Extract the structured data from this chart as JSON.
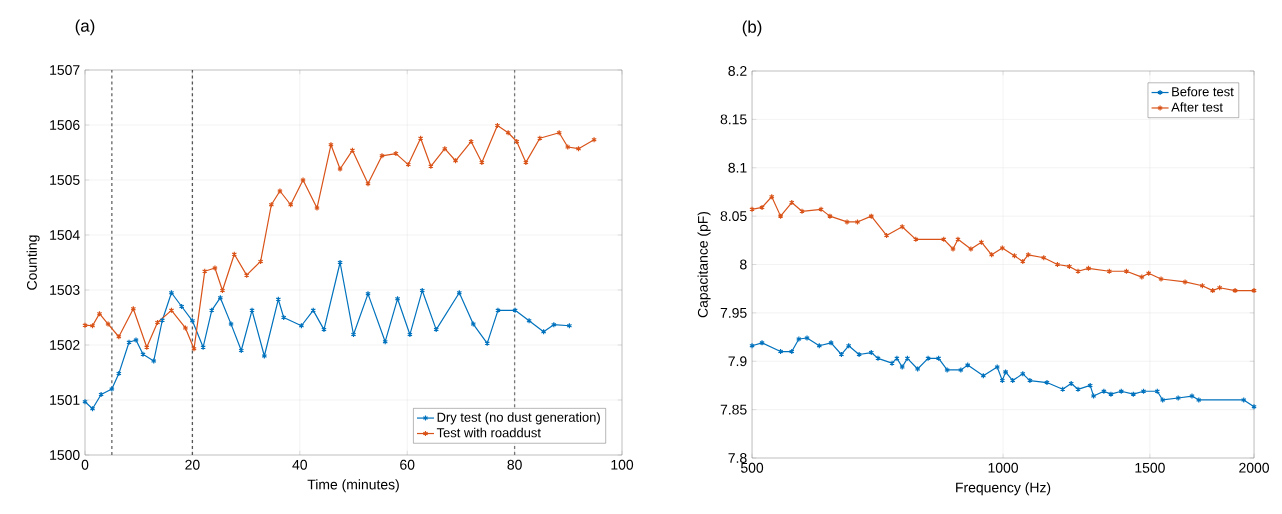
{
  "chart_data": [
    {
      "type": "line",
      "title": "(a)",
      "xlabel": "Time (minutes)",
      "ylabel": "Counting",
      "xlim": [
        0,
        100
      ],
      "ylim": [
        1500,
        1507
      ],
      "xticks": [
        0,
        20,
        40,
        60,
        80,
        100
      ],
      "yticks": [
        1500,
        1501,
        1502,
        1503,
        1504,
        1505,
        1506,
        1507
      ],
      "grid": true,
      "legend": "bottom right",
      "marker": "cross",
      "ref_lines": [
        {
          "axis": "x",
          "value": 5,
          "color": "#666666",
          "line_style": "dashed"
        },
        {
          "axis": "x",
          "value": 20,
          "color": "#555555",
          "line_style": "dashed"
        },
        {
          "axis": "x",
          "value": 80,
          "color": "#777777",
          "line_style": "dashed"
        }
      ],
      "series": [
        {
          "name": "Dry test (no dust generation)",
          "color": "#0072bd",
          "x": [
            0,
            1.4,
            3,
            5,
            6.3,
            8.2,
            9.5,
            10.8,
            12.8,
            14.4,
            16.1,
            18,
            20,
            22,
            23.6,
            25.2,
            27.2,
            29.1,
            31.1,
            33.4,
            36,
            37,
            40.3,
            42.5,
            44.5,
            47.5,
            50,
            52.7,
            55.9,
            58.2,
            60.5,
            62.8,
            65.4,
            69.7,
            72.3,
            74.9,
            76.9,
            80.1,
            82.7,
            85.4,
            87.3,
            90.2
          ],
          "values": [
            1500.97,
            1500.84,
            1501.1,
            1501.2,
            1501.48,
            1502.05,
            1502.09,
            1501.83,
            1501.71,
            1502.45,
            1502.95,
            1502.7,
            1502.44,
            1501.96,
            1502.63,
            1502.86,
            1502.38,
            1501.9,
            1502.63,
            1501.8,
            1502.83,
            1502.5,
            1502.35,
            1502.63,
            1502.28,
            1503.5,
            1502.19,
            1502.93,
            1502.06,
            1502.84,
            1502.19,
            1502.99,
            1502.28,
            1502.95,
            1502.38,
            1502.03,
            1502.63,
            1502.63,
            1502.44,
            1502.24,
            1502.37,
            1502.35
          ]
        },
        {
          "name": "Test with roaddust",
          "color": "#d95319",
          "x": [
            0,
            1.4,
            2.7,
            4.3,
            6.3,
            9,
            11.5,
            13.5,
            16.1,
            18.7,
            20.3,
            22.3,
            24.2,
            25.6,
            27.8,
            30.1,
            32.7,
            34.7,
            36.3,
            38.3,
            40.6,
            43.2,
            45.8,
            47.5,
            49.8,
            52.7,
            55.3,
            57.9,
            60.2,
            62.5,
            64.4,
            67,
            69,
            71.9,
            73.9,
            76.8,
            78.8,
            80.4,
            82.1,
            84.7,
            88.3,
            89.9,
            91.9,
            94.8
          ],
          "values": [
            1502.36,
            1502.35,
            1502.57,
            1502.38,
            1502.15,
            1502.66,
            1501.96,
            1502.41,
            1502.63,
            1502.31,
            1501.93,
            1503.34,
            1503.4,
            1502.99,
            1503.65,
            1503.27,
            1503.52,
            1504.55,
            1504.8,
            1504.55,
            1505.0,
            1504.49,
            1505.64,
            1505.2,
            1505.54,
            1504.93,
            1505.44,
            1505.48,
            1505.28,
            1505.76,
            1505.25,
            1505.57,
            1505.35,
            1505.7,
            1505.32,
            1505.99,
            1505.86,
            1505.7,
            1505.32,
            1505.76,
            1505.86,
            1505.6,
            1505.57,
            1505.73
          ]
        }
      ]
    },
    {
      "type": "line",
      "title": "(b)",
      "xlabel": "Frequency (Hz)",
      "ylabel": "Capacitance (pF)",
      "xlim": [
        500,
        2000
      ],
      "ylim": [
        7.8,
        8.2
      ],
      "xticks": [
        500,
        1000,
        1500,
        2000
      ],
      "yticks": [
        7.8,
        7.85,
        7.9,
        7.95,
        8,
        8.05,
        8.1,
        8.15,
        8.2
      ],
      "log": "x",
      "grid": true,
      "legend": "top right",
      "marker": "cross",
      "series": [
        {
          "name": "Before test",
          "color": "#0072bd",
          "x": [
            500,
            514,
            541,
            558,
            569,
            582,
            602,
            622,
            640,
            653,
            672,
            695,
            708,
            736,
            746,
            757,
            768,
            790,
            813,
            837,
            857,
            890,
            907,
            947,
            984,
            998,
            1007,
            1027,
            1056,
            1077,
            1129,
            1179,
            1207,
            1230,
            1272,
            1284,
            1321,
            1347,
            1386,
            1433,
            1474,
            1531,
            1554,
            1622,
            1685,
            1717,
            1944,
            2000
          ],
          "values": [
            7.916,
            7.919,
            7.91,
            7.91,
            7.923,
            7.924,
            7.916,
            7.919,
            7.907,
            7.916,
            7.907,
            7.909,
            7.903,
            7.898,
            7.903,
            7.894,
            7.903,
            7.892,
            7.903,
            7.903,
            7.891,
            7.891,
            7.896,
            7.885,
            7.894,
            7.88,
            7.889,
            7.88,
            7.887,
            7.88,
            7.878,
            7.871,
            7.877,
            7.871,
            7.875,
            7.864,
            7.869,
            7.866,
            7.869,
            7.866,
            7.869,
            7.869,
            7.86,
            7.862,
            7.864,
            7.86,
            7.86,
            7.853
          ]
        },
        {
          "name": "After test",
          "color": "#d95319",
          "x": [
            500,
            514,
            528,
            541,
            558,
            574,
            605,
            620,
            650,
            669,
            695,
            725,
            757,
            786,
            849,
            871,
            883,
            915,
            942,
            969,
            998,
            1032,
            1056,
            1072,
            1119,
            1162,
            1201,
            1230,
            1266,
            1341,
            1406,
            1467,
            1495,
            1547,
            1653,
            1734,
            1784,
            1819,
            1898,
            2000
          ],
          "values": [
            8.057,
            8.059,
            8.07,
            8.05,
            8.064,
            8.055,
            8.057,
            8.05,
            8.044,
            8.044,
            8.05,
            8.03,
            8.039,
            8.026,
            8.026,
            8.016,
            8.026,
            8.016,
            8.023,
            8.01,
            8.017,
            8.009,
            8.003,
            8.01,
            8.007,
            8.0,
            7.998,
            7.993,
            7.996,
            7.993,
            7.993,
            7.987,
            7.991,
            7.985,
            7.982,
            7.978,
            7.973,
            7.976,
            7.973,
            7.973
          ]
        }
      ]
    }
  ]
}
